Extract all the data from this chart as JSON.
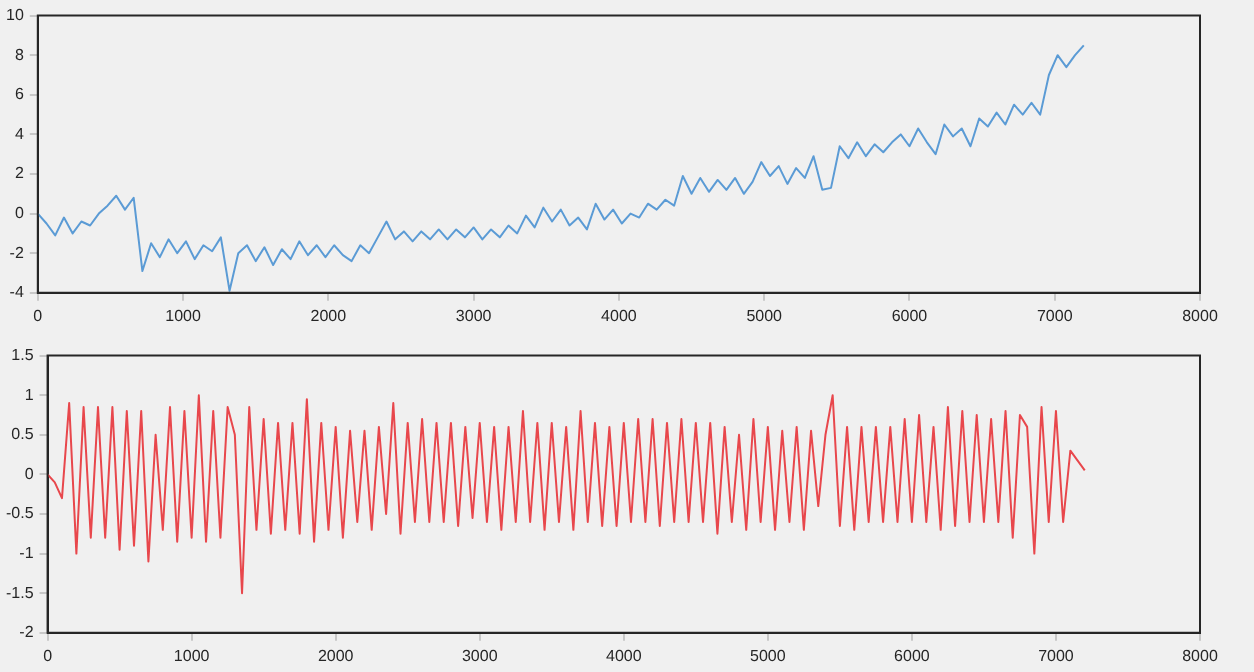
{
  "chart_data": [
    {
      "type": "line",
      "xlim": [
        0,
        8000
      ],
      "xticks": [
        0,
        1000,
        2000,
        3000,
        4000,
        5000,
        6000,
        7000,
        8000
      ],
      "ylim": [
        -4,
        10
      ],
      "yticks": [
        -4,
        -2,
        0,
        2,
        4,
        6,
        8,
        10
      ],
      "grid": false,
      "legend": false,
      "marker": "none",
      "line_style": "solid",
      "series": [
        {
          "color": "#5b9bd5",
          "x": [
            0,
            60,
            120,
            180,
            240,
            300,
            360,
            420,
            480,
            540,
            600,
            660,
            720,
            780,
            840,
            900,
            960,
            1020,
            1080,
            1140,
            1200,
            1260,
            1320,
            1380,
            1440,
            1500,
            1560,
            1620,
            1680,
            1740,
            1800,
            1860,
            1920,
            1980,
            2040,
            2100,
            2160,
            2220,
            2280,
            2340,
            2400,
            2460,
            2520,
            2580,
            2640,
            2700,
            2760,
            2820,
            2880,
            2940,
            3000,
            3060,
            3120,
            3180,
            3240,
            3300,
            3360,
            3420,
            3480,
            3540,
            3600,
            3660,
            3720,
            3780,
            3840,
            3900,
            3960,
            4020,
            4080,
            4140,
            4200,
            4260,
            4320,
            4380,
            4440,
            4500,
            4560,
            4620,
            4680,
            4740,
            4800,
            4860,
            4920,
            4980,
            5040,
            5100,
            5160,
            5220,
            5280,
            5340,
            5400,
            5460,
            5520,
            5580,
            5640,
            5700,
            5760,
            5820,
            5880,
            5940,
            6000,
            6060,
            6120,
            6180,
            6240,
            6300,
            6360,
            6420,
            6480,
            6540,
            6600,
            6660,
            6720,
            6780,
            6840,
            6900,
            6960,
            7020,
            7080,
            7140,
            7200
          ],
          "values": [
            0,
            -0.5,
            -1.1,
            -0.2,
            -1.0,
            -0.4,
            -0.6,
            0.0,
            0.4,
            0.9,
            0.2,
            0.8,
            -2.9,
            -1.5,
            -2.2,
            -1.3,
            -2.0,
            -1.4,
            -2.3,
            -1.6,
            -1.9,
            -1.2,
            -3.9,
            -2.0,
            -1.6,
            -2.4,
            -1.7,
            -2.6,
            -1.8,
            -2.3,
            -1.4,
            -2.1,
            -1.6,
            -2.2,
            -1.6,
            -2.1,
            -2.4,
            -1.6,
            -2.0,
            -1.2,
            -0.4,
            -1.3,
            -0.9,
            -1.4,
            -0.9,
            -1.3,
            -0.8,
            -1.3,
            -0.8,
            -1.2,
            -0.7,
            -1.3,
            -0.8,
            -1.2,
            -0.6,
            -1.0,
            -0.1,
            -0.7,
            0.3,
            -0.4,
            0.2,
            -0.6,
            -0.2,
            -0.8,
            0.5,
            -0.3,
            0.2,
            -0.5,
            0.0,
            -0.2,
            0.5,
            0.2,
            0.7,
            0.4,
            1.9,
            1.0,
            1.8,
            1.1,
            1.7,
            1.2,
            1.8,
            1.0,
            1.6,
            2.6,
            1.9,
            2.4,
            1.5,
            2.3,
            1.8,
            2.9,
            1.2,
            1.3,
            3.4,
            2.8,
            3.6,
            2.9,
            3.5,
            3.1,
            3.6,
            4.0,
            3.4,
            4.3,
            3.6,
            3.0,
            4.5,
            3.9,
            4.3,
            3.4,
            4.8,
            4.4,
            5.1,
            4.5,
            5.5,
            5.0,
            5.6,
            5.0,
            7.0,
            8.0,
            7.4,
            8.0,
            8.5
          ]
        }
      ]
    },
    {
      "type": "line",
      "xlim": [
        0,
        8000
      ],
      "xticks": [
        0,
        1000,
        2000,
        3000,
        4000,
        5000,
        6000,
        7000,
        8000
      ],
      "ylim": [
        -2,
        1.5
      ],
      "yticks": [
        -2,
        -1.5,
        -1,
        -0.5,
        0,
        0.5,
        1,
        1.5
      ],
      "grid": false,
      "legend": false,
      "marker": "none",
      "line_style": "solid",
      "series": [
        {
          "color": "#e8474c",
          "x": [
            0,
            50,
            100,
            150,
            200,
            250,
            300,
            350,
            400,
            450,
            500,
            550,
            600,
            650,
            700,
            750,
            800,
            850,
            900,
            950,
            1000,
            1050,
            1100,
            1150,
            1200,
            1250,
            1300,
            1350,
            1400,
            1450,
            1500,
            1550,
            1600,
            1650,
            1700,
            1750,
            1800,
            1850,
            1900,
            1950,
            2000,
            2050,
            2100,
            2150,
            2200,
            2250,
            2300,
            2350,
            2400,
            2450,
            2500,
            2550,
            2600,
            2650,
            2700,
            2750,
            2800,
            2850,
            2900,
            2950,
            3000,
            3050,
            3100,
            3150,
            3200,
            3250,
            3300,
            3350,
            3400,
            3450,
            3500,
            3550,
            3600,
            3650,
            3700,
            3750,
            3800,
            3850,
            3900,
            3950,
            4000,
            4050,
            4100,
            4150,
            4200,
            4250,
            4300,
            4350,
            4400,
            4450,
            4500,
            4550,
            4600,
            4650,
            4700,
            4750,
            4800,
            4850,
            4900,
            4950,
            5000,
            5050,
            5100,
            5150,
            5200,
            5250,
            5300,
            5350,
            5400,
            5450,
            5500,
            5550,
            5600,
            5650,
            5700,
            5750,
            5800,
            5850,
            5900,
            5950,
            6000,
            6050,
            6100,
            6150,
            6200,
            6250,
            6300,
            6350,
            6400,
            6450,
            6500,
            6550,
            6600,
            6650,
            6700,
            6750,
            6800,
            6850,
            6900,
            6950,
            7000,
            7050,
            7100,
            7200
          ],
          "values": [
            0,
            -0.1,
            -0.3,
            0.9,
            -1.0,
            0.85,
            -0.8,
            0.85,
            -0.8,
            0.85,
            -0.95,
            0.8,
            -0.9,
            0.8,
            -1.1,
            0.5,
            -0.7,
            0.85,
            -0.85,
            0.8,
            -0.8,
            1.0,
            -0.85,
            0.8,
            -0.8,
            0.85,
            0.5,
            -1.5,
            0.85,
            -0.7,
            0.7,
            -0.75,
            0.65,
            -0.7,
            0.65,
            -0.75,
            0.95,
            -0.85,
            0.65,
            -0.7,
            0.6,
            -0.8,
            0.55,
            -0.6,
            0.55,
            -0.7,
            0.6,
            -0.5,
            0.9,
            -0.75,
            0.65,
            -0.6,
            0.7,
            -0.6,
            0.65,
            -0.6,
            0.65,
            -0.65,
            0.6,
            -0.55,
            0.65,
            -0.6,
            0.6,
            -0.7,
            0.6,
            -0.6,
            0.8,
            -0.6,
            0.65,
            -0.7,
            0.65,
            -0.6,
            0.6,
            -0.7,
            0.8,
            -0.6,
            0.65,
            -0.65,
            0.6,
            -0.65,
            0.65,
            -0.6,
            0.7,
            -0.6,
            0.7,
            -0.65,
            0.65,
            -0.6,
            0.7,
            -0.6,
            0.65,
            -0.6,
            0.65,
            -0.75,
            0.6,
            -0.6,
            0.5,
            -0.7,
            0.7,
            -0.6,
            0.6,
            -0.7,
            0.55,
            -0.6,
            0.6,
            -0.7,
            0.55,
            -0.4,
            0.5,
            1.0,
            -0.65,
            0.6,
            -0.7,
            0.6,
            -0.6,
            0.6,
            -0.6,
            0.6,
            -0.6,
            0.7,
            -0.6,
            0.75,
            -0.6,
            0.6,
            -0.7,
            0.85,
            -0.65,
            0.8,
            -0.6,
            0.75,
            -0.6,
            0.7,
            -0.6,
            0.8,
            -0.8,
            0.75,
            0.6,
            -1.0,
            0.85,
            -0.6,
            0.8,
            -0.6,
            0.3,
            0.05
          ]
        }
      ]
    }
  ]
}
